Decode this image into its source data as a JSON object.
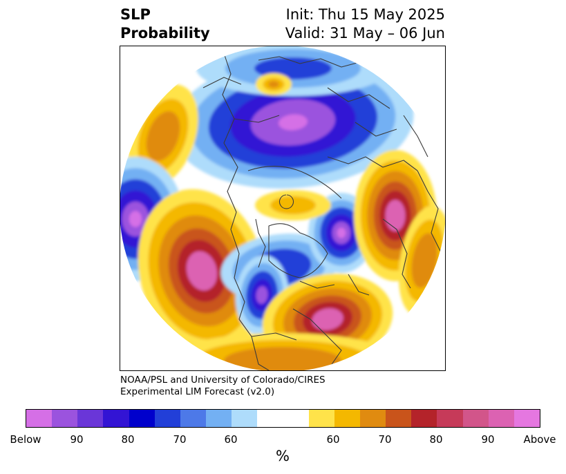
{
  "title": {
    "left_line1": "SLP",
    "left_line2": "Probability",
    "right_line1": "Init: Thu 15 May 2025",
    "right_line2": "Valid: 31 May – 06 Jun"
  },
  "credit": {
    "line1": "NOAA/PSL and University of Colorado/CIRES",
    "line2": "Experimental LIM Forecast (v2.0)"
  },
  "colorbar": {
    "unit": "%",
    "tick_labels": [
      "Below",
      "90",
      "80",
      "70",
      "60",
      "60",
      "70",
      "80",
      "90",
      "Above"
    ],
    "colors": [
      "#d56fe6",
      "#9b53de",
      "#6a36d8",
      "#3314d4",
      "#0000cc",
      "#223fd8",
      "#4d79e8",
      "#73b0f3",
      "#aedcfb",
      "#ffffff",
      "#ffe34a",
      "#f4b800",
      "#e08b10",
      "#c9541b",
      "#b4232a",
      "#c63a59",
      "#d2558a",
      "#dc62b2",
      "#e577e0"
    ]
  },
  "map": {
    "projection": "north-polar-stereographic",
    "colors": {
      "below_strong": "#d56fe6",
      "below_90": "#9b53de",
      "below_80": "#3314d4",
      "below_70": "#223fd8",
      "below_60": "#73b0f3",
      "below_weak": "#aedcfb",
      "above_weak": "#ffe34a",
      "above_60": "#f4b800",
      "above_70": "#e08b10",
      "above_80": "#c9541b",
      "above_90": "#b4232a",
      "above_strong": "#dc62b2"
    }
  }
}
